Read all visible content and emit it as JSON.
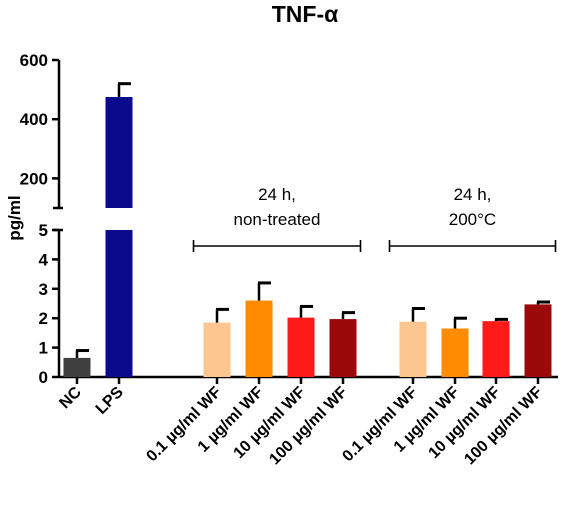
{
  "chart_data": {
    "type": "bar",
    "title": "TNF-α",
    "ylabel": "pg/ml",
    "xlabel": "",
    "y_axis": {
      "broken": true,
      "lower_segment": {
        "ylim": [
          0,
          5
        ],
        "ticks": [
          "0",
          "1",
          "2",
          "3",
          "4",
          "5"
        ]
      },
      "upper_segment": {
        "ylim": [
          100,
          600
        ],
        "ticks": [
          "200",
          "400",
          "600"
        ]
      }
    },
    "categories": [
      "NC",
      "LPS",
      "0.1 µg/ml WF",
      "1 µg/ml WF",
      "10 µg/ml WF",
      "100 µg/ml WF",
      "0.1 µg/ml WF",
      "1 µg/ml WF",
      "10 µg/ml WF",
      "100 µg/ml WF"
    ],
    "values": [
      0.65,
      475,
      1.85,
      2.6,
      2.02,
      1.97,
      1.88,
      1.65,
      1.9,
      2.47
    ],
    "errors": [
      0.25,
      45,
      0.45,
      0.6,
      0.38,
      0.22,
      0.45,
      0.35,
      0.06,
      0.08
    ],
    "colors": [
      "#404040",
      "#0a0a8c",
      "#fdc590",
      "#ff8c00",
      "#ff1a1a",
      "#9b0a0a",
      "#fdc590",
      "#ff8c00",
      "#ff1a1a",
      "#9b0a0a"
    ],
    "groups": [
      {
        "label_line1": "24 h,",
        "label_line2": "non-treated",
        "from": 2,
        "to": 5
      },
      {
        "label_line1": "24 h,",
        "label_line2": "200°C",
        "from": 6,
        "to": 9
      }
    ],
    "grid": false,
    "legend": "none"
  }
}
